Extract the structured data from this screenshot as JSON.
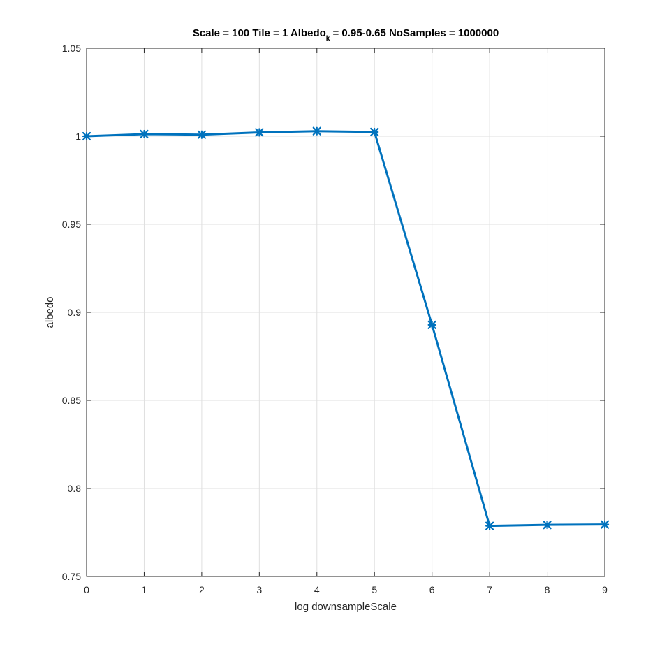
{
  "chart_data": {
    "type": "line",
    "title": {
      "before_sub": "Scale = 100 Tile = 1 Albedo",
      "subscript": "k",
      "after_sub": " = 0.95-0.65 NoSamples = 1000000"
    },
    "xlabel": "log downsampleScale",
    "ylabel": "albedo",
    "xlim": [
      0,
      9
    ],
    "ylim": [
      0.75,
      1.05
    ],
    "xticks": [
      0,
      1,
      2,
      3,
      4,
      5,
      6,
      7,
      8,
      9
    ],
    "xtick_labels": [
      "0",
      "1",
      "2",
      "3",
      "4",
      "5",
      "6",
      "7",
      "8",
      "9"
    ],
    "yticks": [
      0.75,
      0.8,
      0.85,
      0.9,
      0.95,
      1.0,
      1.05
    ],
    "ytick_labels": [
      "0.75",
      "0.8",
      "0.85",
      "0.9",
      "0.95",
      "1",
      "1.05"
    ],
    "grid": true,
    "series": [
      {
        "color": "#0072BD",
        "marker": "x-star",
        "x": [
          0,
          1,
          2,
          3,
          4,
          5,
          6,
          7,
          8,
          9
        ],
        "y": [
          1.0,
          1.0012,
          1.0009,
          1.0022,
          1.0029,
          1.0024,
          0.8929,
          0.7787,
          0.7793,
          0.7795
        ]
      }
    ]
  }
}
